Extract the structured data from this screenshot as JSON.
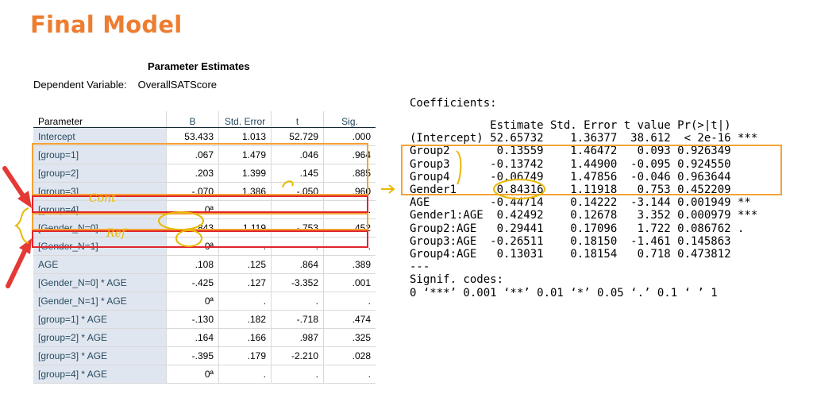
{
  "slide": {
    "title": "Final Model"
  },
  "spss": {
    "title": "Parameter Estimates",
    "dependent_label": "Dependent Variable:",
    "dependent_value": "OverallSATScore",
    "headers": [
      "Parameter",
      "B",
      "Std. Error",
      "t",
      "Sig."
    ],
    "rows": [
      [
        "Intercept",
        "53.433",
        "1.013",
        "52.729",
        ".000"
      ],
      [
        "[group=1]",
        ".067",
        "1.479",
        ".046",
        ".964"
      ],
      [
        "[group=2]",
        ".203",
        "1.399",
        ".145",
        ".885"
      ],
      [
        "[group=3]",
        "-.070",
        "1.386",
        "-.050",
        ".960"
      ],
      [
        "[group=4]",
        "0ª",
        ".",
        ".",
        "."
      ],
      [
        "[Gender_N=0]",
        "-.843",
        "1.119",
        "-.753",
        ".452"
      ],
      [
        "[Gender_N=1]",
        "0ª",
        ".",
        ".",
        "."
      ],
      [
        "AGE",
        ".108",
        ".125",
        ".864",
        ".389"
      ],
      [
        "[Gender_N=0] * AGE",
        "-.425",
        ".127",
        "-3.352",
        ".001"
      ],
      [
        "[Gender_N=1] * AGE",
        "0ª",
        ".",
        ".",
        "."
      ],
      [
        "[group=1] * AGE",
        "-.130",
        ".182",
        "-.718",
        ".474"
      ],
      [
        "[group=2] * AGE",
        ".164",
        ".166",
        ".987",
        ".325"
      ],
      [
        "[group=3] * AGE",
        "-.395",
        ".179",
        "-2.210",
        ".028"
      ],
      [
        "[group=4] * AGE",
        "0ª",
        ".",
        ".",
        "."
      ]
    ]
  },
  "r_output": {
    "header": "Coefficients:",
    "lines": [
      "            Estimate Std. Error t value Pr(>|t|)",
      "(Intercept) 52.65732    1.36377  38.612  < 2e-16 ***",
      "Group2       0.13559    1.46472   0.093 0.926349",
      "Group3      -0.13742    1.44900  -0.095 0.924550",
      "Group4      -0.06749    1.47856  -0.046 0.963644",
      "Gender1      0.84316    1.11918   0.753 0.452209",
      "AGE         -0.44714    0.14222  -3.144 0.001949 **",
      "Gender1:AGE  0.42492    0.12678   3.352 0.000979 ***",
      "Group2:AGE   0.29441    0.17096   1.722 0.086762 .",
      "Group3:AGE  -0.26511    0.18150  -1.461 0.145863",
      "Group4:AGE   0.13031    0.18154   0.718 0.473812",
      "---",
      "Signif. codes:",
      "0 ‘***’ 0.001 ‘**’ 0.01 ‘*’ 0.05 ‘.’ 0.1 ‘ ’ 1"
    ]
  },
  "annotations": {
    "cont_note": "Cont",
    "ref_note": "Ref"
  },
  "colors": {
    "title": "#ed7d31",
    "orange_box": "#f4a235",
    "red_box": "#e0262b",
    "highlighter": "#e8b800",
    "spss_label_bg": "#e0e6ef"
  }
}
